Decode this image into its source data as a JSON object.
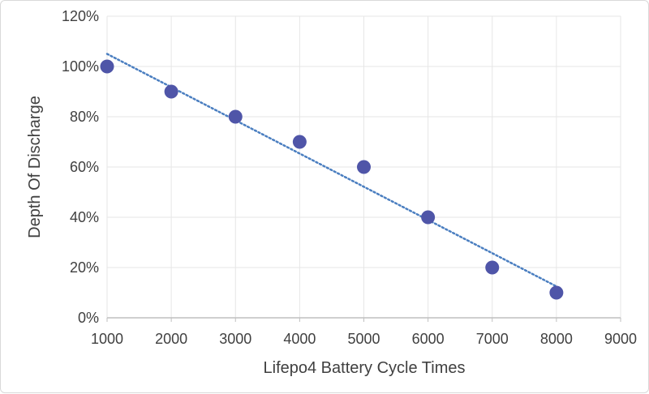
{
  "chart_data": {
    "type": "scatter",
    "title": "",
    "xlabel": "Lifepo4 Battery Cycle Times",
    "ylabel": "Depth Of Discharge",
    "xlim": [
      1000,
      9000
    ],
    "ylim": [
      0,
      120
    ],
    "x_ticks": [
      "1000",
      "2000",
      "3000",
      "4000",
      "5000",
      "6000",
      "7000",
      "8000",
      "9000"
    ],
    "y_ticks": [
      "0%",
      "20%",
      "40%",
      "60%",
      "80%",
      "100%",
      "120%"
    ],
    "series": [
      {
        "x": [
          1000,
          2000,
          3000,
          4000,
          5000,
          6000,
          7000,
          8000
        ],
        "y": [
          100,
          90,
          80,
          70,
          60,
          40,
          20,
          10
        ],
        "color": "#4f55a8"
      }
    ],
    "trendline": {
      "type": "linear",
      "style": "dotted",
      "color": "#4a7ec0"
    },
    "grid": true,
    "colors": {
      "grid": "#e6e6e6",
      "axis": "#bfbfbf",
      "text": "#404040"
    }
  }
}
